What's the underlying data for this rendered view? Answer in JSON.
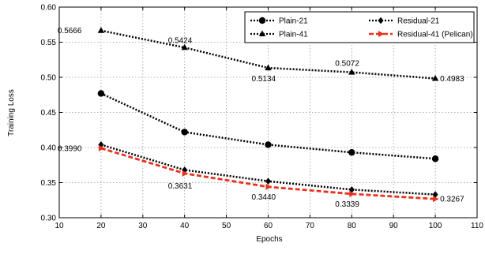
{
  "chart_data": {
    "type": "line",
    "xlabel": "Epochs",
    "ylabel": "Training Loss",
    "xlim": [
      10,
      110
    ],
    "ylim": [
      0.3,
      0.6
    ],
    "xticks": [
      "10",
      "20",
      "30",
      "40",
      "50",
      "60",
      "70",
      "80",
      "90",
      "100",
      "110"
    ],
    "yticks": [
      "0.30",
      "0.35",
      "0.40",
      "0.45",
      "0.50",
      "0.55",
      "0.60"
    ],
    "grid": true,
    "legend_position": "top-right",
    "x": [
      20,
      40,
      60,
      80,
      100
    ],
    "series": [
      {
        "name": "Plain-21",
        "values": [
          0.477,
          0.422,
          0.404,
          0.393,
          0.384
        ],
        "color": "#000000",
        "marker": "circle",
        "line_style": "dotted"
      },
      {
        "name": "Plain-41",
        "values": [
          0.5666,
          0.5424,
          0.5134,
          0.5072,
          0.4983
        ],
        "color": "#000000",
        "marker": "triangle",
        "line_style": "dotted"
      },
      {
        "name": "Residual-21",
        "values": [
          0.404,
          0.368,
          0.352,
          0.34,
          0.333
        ],
        "color": "#000000",
        "marker": "diamond",
        "line_style": "dotted"
      },
      {
        "name": "Residual-41 (Pelican)",
        "values": [
          0.399,
          0.3631,
          0.344,
          0.3339,
          0.3267
        ],
        "color": "#e8321e",
        "marker": "triangle-right",
        "line_style": "dashed"
      }
    ],
    "annotations": [
      {
        "text": "0.5666",
        "x": 20,
        "y": 0.5666
      },
      {
        "text": "0.5424",
        "x": 40,
        "y": 0.5424
      },
      {
        "text": "0.5134",
        "x": 60,
        "y": 0.5134
      },
      {
        "text": "0.5072",
        "x": 80,
        "y": 0.5072
      },
      {
        "text": "0.4983",
        "x": 100,
        "y": 0.4983
      },
      {
        "text": "0.3990",
        "x": 20,
        "y": 0.399
      },
      {
        "text": "0.3631",
        "x": 40,
        "y": 0.3631
      },
      {
        "text": "0.3440",
        "x": 60,
        "y": 0.344
      },
      {
        "text": "0.3339",
        "x": 80,
        "y": 0.3339
      },
      {
        "text": "0.3267",
        "x": 100,
        "y": 0.3267
      }
    ]
  }
}
